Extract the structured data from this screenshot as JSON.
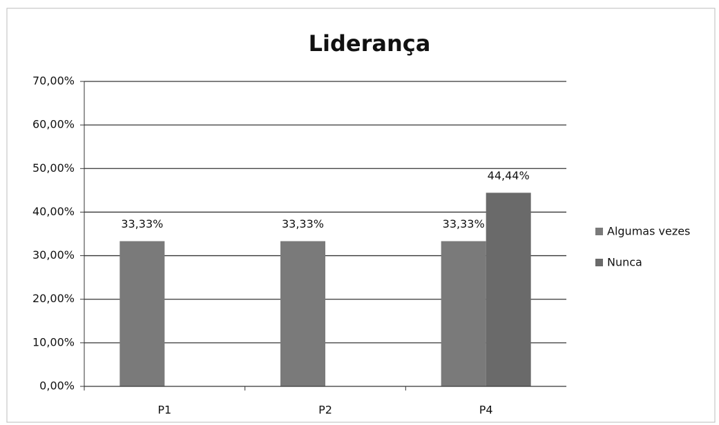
{
  "chart_data": {
    "type": "bar",
    "title": "Liderança",
    "categories": [
      "P1",
      "P2",
      "P4"
    ],
    "series": [
      {
        "name": "Algumas vezes",
        "color": "#7a7a7a",
        "values": [
          33.33,
          33.33,
          33.33
        ],
        "value_labels": [
          "33,33%",
          "33,33%",
          "33,33%"
        ]
      },
      {
        "name": "Nunca",
        "color": "#6a6a6a",
        "values": [
          null,
          null,
          44.44
        ],
        "value_labels": [
          null,
          null,
          "44,44%"
        ]
      }
    ],
    "ylim": [
      0,
      70
    ],
    "yticks": [
      {
        "value": 0,
        "label": "0,00%"
      },
      {
        "value": 10,
        "label": "10,00%"
      },
      {
        "value": 20,
        "label": "20,00%"
      },
      {
        "value": 30,
        "label": "30,00%"
      },
      {
        "value": 40,
        "label": "40,00%"
      },
      {
        "value": 50,
        "label": "50,00%"
      },
      {
        "value": 60,
        "label": "60,00%"
      },
      {
        "value": 70,
        "label": "70,00%"
      }
    ],
    "grid": true,
    "legend": "right"
  }
}
